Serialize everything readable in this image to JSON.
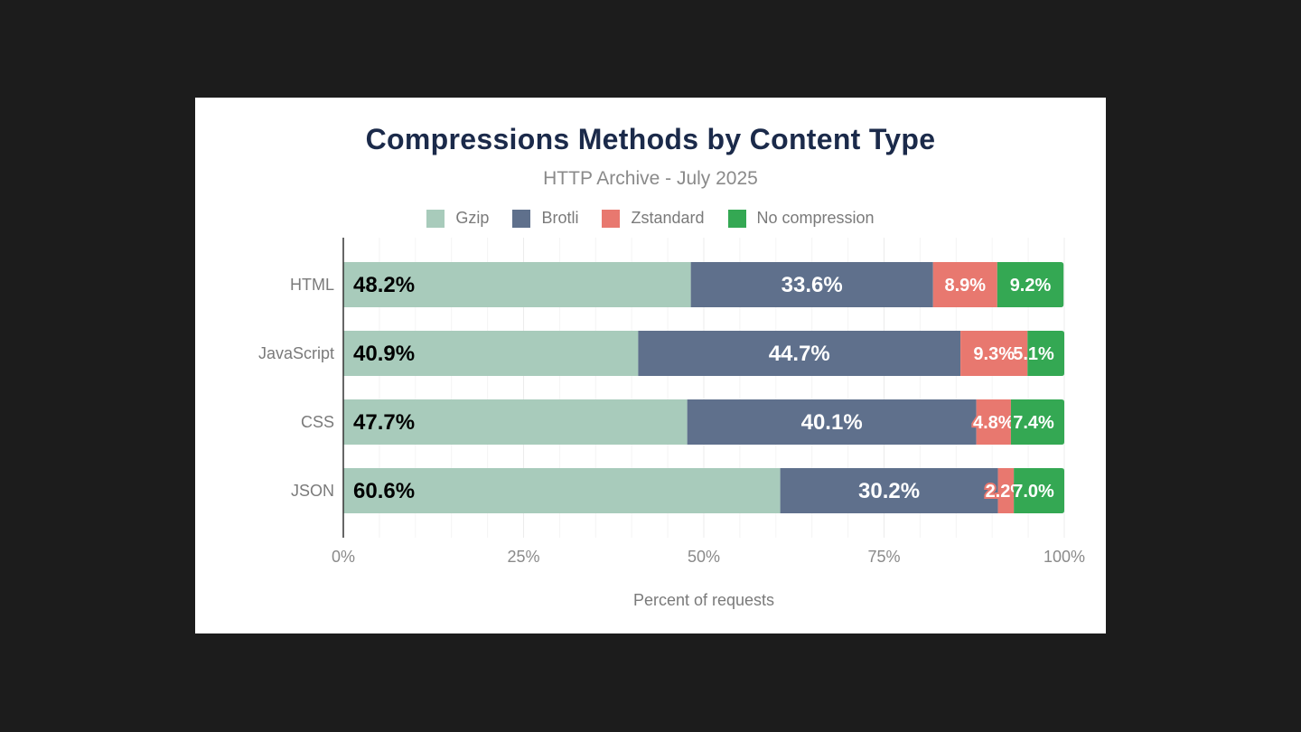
{
  "chart_data": {
    "type": "bar",
    "orientation": "horizontal",
    "stacked": true,
    "title": "Compressions Methods by Content Type",
    "subtitle": "HTTP Archive - July 2025",
    "xlabel": "Percent of requests",
    "ylabel": "",
    "xlim": [
      0,
      100
    ],
    "x_ticks": [
      "0%",
      "25%",
      "50%",
      "75%",
      "100%"
    ],
    "categories": [
      "HTML",
      "JavaScript",
      "CSS",
      "JSON"
    ],
    "legend_position": "top",
    "grid": true,
    "series": [
      {
        "name": "Gzip",
        "color": "#a8cbbb",
        "label_color": "#000000",
        "values": [
          48.2,
          40.9,
          47.7,
          60.6
        ],
        "labels": [
          "48.2%",
          "40.9%",
          "47.7%",
          "60.6%"
        ]
      },
      {
        "name": "Brotli",
        "color": "#5f708c",
        "label_color": "#ffffff",
        "values": [
          33.6,
          44.7,
          40.1,
          30.2
        ],
        "labels": [
          "33.6%",
          "44.7%",
          "40.1%",
          "30.2%"
        ]
      },
      {
        "name": "Zstandard",
        "color": "#e8786f",
        "label_color": "#ffffff",
        "values": [
          8.9,
          9.3,
          4.8,
          2.2
        ],
        "labels": [
          "8.9%",
          "9.3%",
          "4.8%",
          "2.2%"
        ]
      },
      {
        "name": "No compression",
        "color": "#34a853",
        "label_color": "#ffffff",
        "values": [
          9.2,
          5.1,
          7.4,
          7.0
        ],
        "labels": [
          "9.2%",
          "5.1%",
          "7.4%",
          "7.0%"
        ]
      }
    ]
  }
}
